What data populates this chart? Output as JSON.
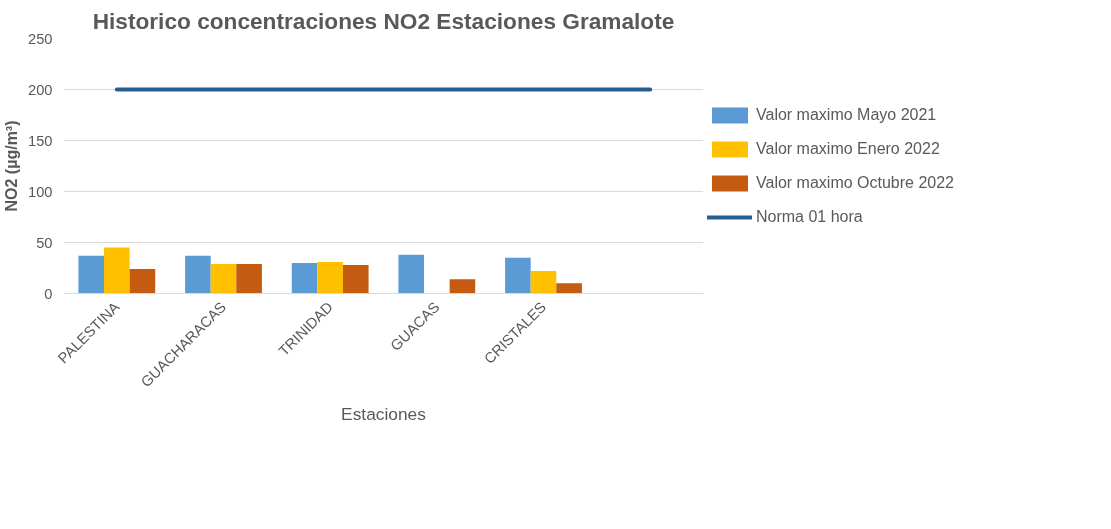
{
  "chart_data": {
    "type": "bar",
    "title": "Historico concentraciones NO2 Estaciones Gramalote",
    "xlabel": "Estaciones",
    "ylabel": "NO2 (µg/m³)",
    "categories": [
      "PALESTINA",
      "GUACHARACAS",
      "TRINIDAD",
      "GUACAS",
      "CRISTALES",
      null
    ],
    "series": [
      {
        "name": "Valor maximo Mayo 2021",
        "color": "#5b9bd5",
        "values": [
          37,
          37,
          30,
          38,
          35,
          null
        ]
      },
      {
        "name": "Valor maximo Enero 2022",
        "color": "#ffc000",
        "values": [
          45,
          29,
          31,
          null,
          22,
          null
        ]
      },
      {
        "name": "Valor maximo Octubre 2022",
        "color": "#c55a11",
        "values": [
          24,
          29,
          28,
          14,
          10,
          null
        ]
      },
      {
        "name": "Norma 01 hora",
        "color": "#255e91",
        "type": "line",
        "values": [
          200,
          200,
          200,
          200,
          200,
          200
        ]
      }
    ],
    "ylim": [
      0,
      250
    ],
    "yticks": [
      0,
      50,
      100,
      150,
      200,
      250
    ],
    "grid": "y",
    "legend": "right"
  }
}
